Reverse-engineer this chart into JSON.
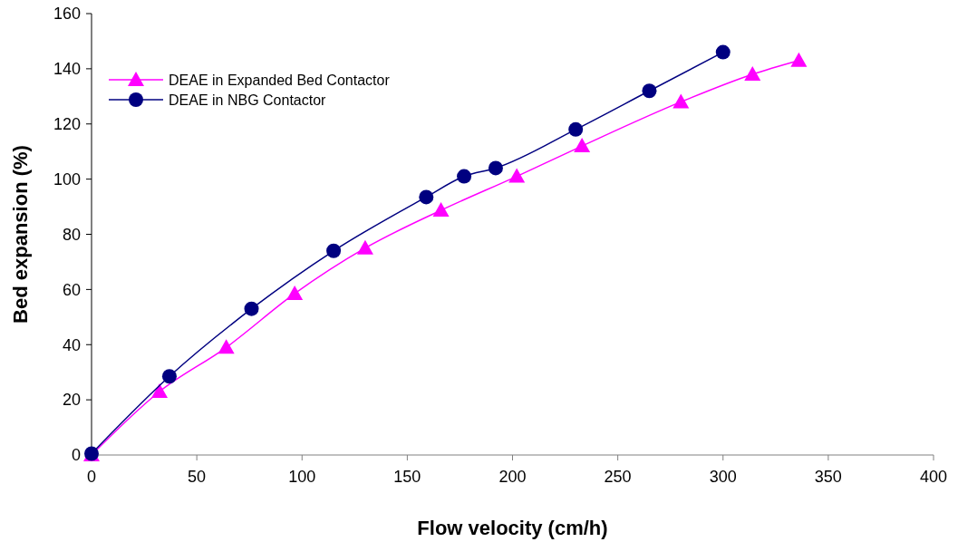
{
  "chart_data": {
    "type": "line",
    "xlabel": "Flow velocity (cm/h)",
    "ylabel": "Bed expansion (%)",
    "xlim": [
      0,
      400
    ],
    "xticks": [
      0,
      50,
      100,
      150,
      200,
      250,
      300,
      350,
      400
    ],
    "ylim": [
      0,
      160
    ],
    "yticks": [
      0,
      20,
      40,
      60,
      80,
      100,
      120,
      140,
      160
    ],
    "grid": false,
    "legend": "top left",
    "series": [
      {
        "name": "DEAE in Expanded Bed Contactor",
        "color": "#ff00ff",
        "marker": "triangle",
        "x": [
          0,
          32.3,
          64,
          96.5,
          130,
          166,
          202,
          233,
          280,
          314,
          336
        ],
        "values": [
          0,
          23,
          39,
          58.5,
          75,
          88.7,
          101,
          112,
          128,
          138,
          143
        ]
      },
      {
        "name": "DEAE in NBG Contactor",
        "color": "#000080",
        "marker": "circle",
        "x": [
          0,
          37,
          76,
          115,
          159,
          177,
          192,
          230,
          265,
          300
        ],
        "values": [
          0.5,
          28.5,
          53,
          74,
          93.5,
          101,
          104,
          118,
          132,
          146
        ]
      }
    ]
  }
}
